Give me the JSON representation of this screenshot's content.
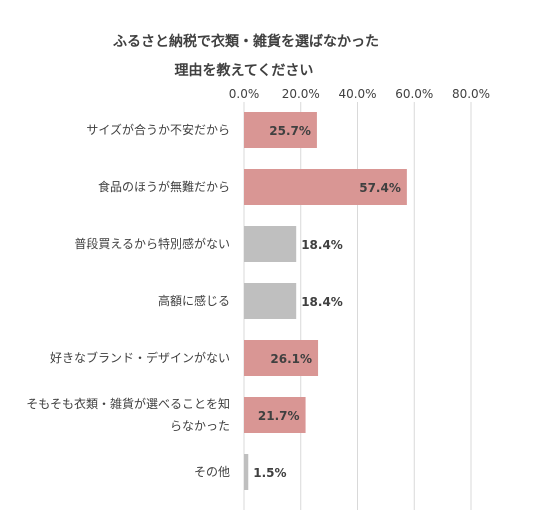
{
  "chart_data": {
    "type": "bar",
    "orientation": "horizontal",
    "title_lines": [
      "ふるさと納税で衣類・雑貨を選ばなかった",
      "理由を教えてください"
    ],
    "categories": [
      [
        "サイズが合うか不安だから"
      ],
      [
        "食品のほうが無難だから"
      ],
      [
        "普段買えるから特別感がない"
      ],
      [
        "高額に感じる"
      ],
      [
        "好きなブランド・デザインがない"
      ],
      [
        "そもそも衣類・雑貨が選べることを知",
        "らなかった"
      ],
      [
        "その他"
      ]
    ],
    "values": [
      25.7,
      57.4,
      18.4,
      18.4,
      26.1,
      21.7,
      1.5
    ],
    "data_labels": [
      "25.7%",
      "57.4%",
      "18.4%",
      "18.4%",
      "26.1%",
      "21.7%",
      "1.5%"
    ],
    "bar_colors": [
      "#d99694",
      "#d99694",
      "#bfbfbf",
      "#bfbfbf",
      "#d99694",
      "#d99694",
      "#bfbfbf"
    ],
    "xlim": [
      0,
      80
    ],
    "x_ticks": [
      0,
      20,
      40,
      60,
      80
    ],
    "x_tick_labels": [
      "0.0%",
      "20.0%",
      "40.0%",
      "60.0%",
      "80.0%"
    ],
    "xaxis_position": "top",
    "grid": true,
    "gridline_color": "#d9d9d9"
  }
}
